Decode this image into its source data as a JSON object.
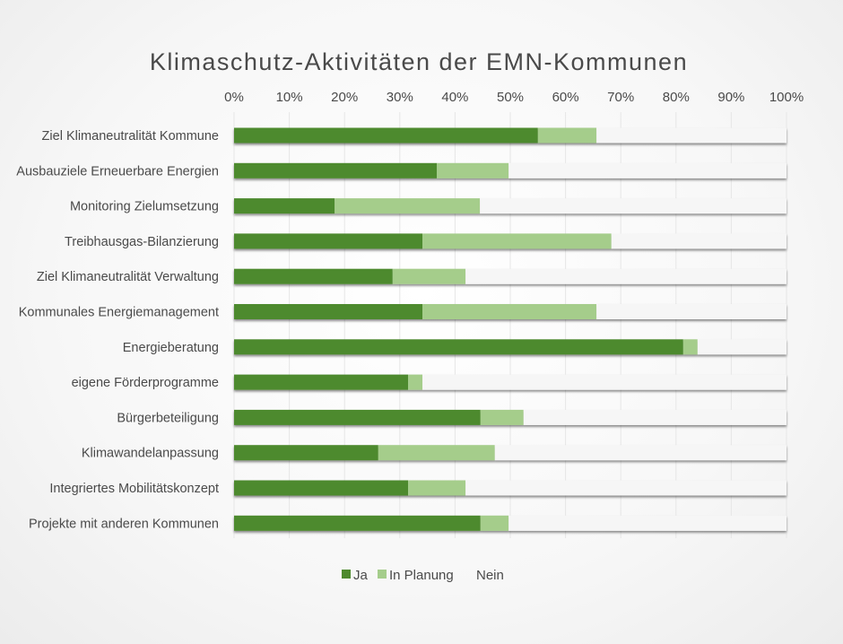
{
  "chart_data": {
    "type": "bar",
    "orientation": "horizontal",
    "stacked": "percent",
    "title": "Klimaschutz-Aktivitäten der EMN-Kommunen",
    "xlabel": "",
    "ylabel": "",
    "xlim": [
      0,
      100
    ],
    "x_ticks": [
      "0%",
      "10%",
      "20%",
      "30%",
      "40%",
      "50%",
      "60%",
      "70%",
      "80%",
      "90%",
      "100%"
    ],
    "grid": true,
    "legend_position": "bottom",
    "categories": [
      "Ziel Klimaneutralität Kommune",
      "Ausbauziele Erneuerbare Energien",
      "Monitoring Zielumsetzung",
      "Treibhausgas-Bilanzierung",
      "Ziel Klimaneutralität Verwaltung",
      "Kommunales Energiemanagement",
      "Energieberatung",
      "eigene Förderprogramme",
      "Bürgerbeteiligung",
      "Klimawandelanpassung",
      "Integriertes Mobilitätskonzept",
      "Projekte mit anderen Kommunen"
    ],
    "series": [
      {
        "name": "Ja",
        "color": "#4e8a2e",
        "values": [
          55.0,
          36.7,
          18.2,
          34.1,
          28.7,
          34.1,
          81.3,
          31.5,
          44.6,
          26.1,
          31.5,
          44.6
        ]
      },
      {
        "name": "In Planung",
        "color": "#a5cd8b",
        "values": [
          10.6,
          13.0,
          26.3,
          34.2,
          13.2,
          31.5,
          2.6,
          2.6,
          7.8,
          21.1,
          10.4,
          5.1
        ]
      },
      {
        "name": "Nein",
        "color": "#f6f6f6",
        "values": [
          34.4,
          50.3,
          55.5,
          31.7,
          58.1,
          34.4,
          16.1,
          65.9,
          47.6,
          52.8,
          58.1,
          50.3
        ]
      }
    ]
  }
}
